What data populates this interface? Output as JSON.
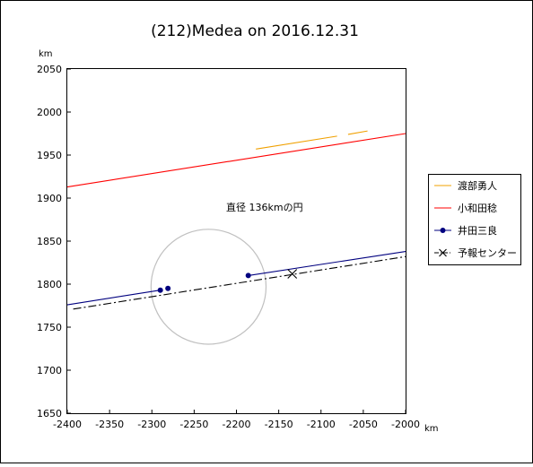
{
  "chart_data": {
    "type": "line",
    "title": "(212)Medea on 2016.12.31",
    "x_unit": "km",
    "y_unit": "km",
    "xlim": [
      -2400,
      -2000
    ],
    "ylim": [
      1650,
      2050
    ],
    "x_ticks": [
      "-2400",
      "-2350",
      "-2300",
      "-2250",
      "-2200",
      "-2150",
      "-2100",
      "-2050",
      "-2000"
    ],
    "y_ticks": [
      "1650",
      "1700",
      "1750",
      "1800",
      "1850",
      "1900",
      "1950",
      "2000",
      "2050"
    ],
    "grid": false,
    "legend_position": "right",
    "series": [
      {
        "name": "渡部勇人",
        "color": "#f0a000",
        "style": "solid",
        "segments": [
          [
            [
              -2177,
              1957
            ],
            [
              -2081,
              1972
            ]
          ],
          [
            [
              -2068,
              1974
            ],
            [
              -2045,
              1978
            ]
          ]
        ]
      },
      {
        "name": "小和田稔",
        "color": "#ff0000",
        "style": "solid",
        "segments": [
          [
            [
              -2400,
              1913
            ],
            [
              -2000,
              1975
            ]
          ]
        ]
      },
      {
        "name": "井田三良",
        "color": "#00007f",
        "style": "solid",
        "marker": "dot",
        "segments": [
          [
            [
              -2400,
              1776
            ],
            [
              -2290,
              1793
            ]
          ],
          [
            [
              -2186,
              1810
            ],
            [
              -2000,
              1838
            ]
          ]
        ],
        "points": [
          [
            -2290,
            1793
          ],
          [
            -2281,
            1795
          ],
          [
            -2186,
            1810
          ]
        ]
      },
      {
        "name": "予報センター",
        "color": "#000000",
        "style": "dashdot",
        "marker": "x",
        "segments": [
          [
            [
              -2393,
              1771
            ],
            [
              -2000,
              1832
            ]
          ]
        ],
        "points": [
          [
            -2134,
            1812
          ]
        ]
      }
    ],
    "circle": {
      "label": "直径 136kmの円",
      "center": [
        -2233,
        1797
      ],
      "diameter": 136,
      "color": "#c0c0c0"
    }
  }
}
